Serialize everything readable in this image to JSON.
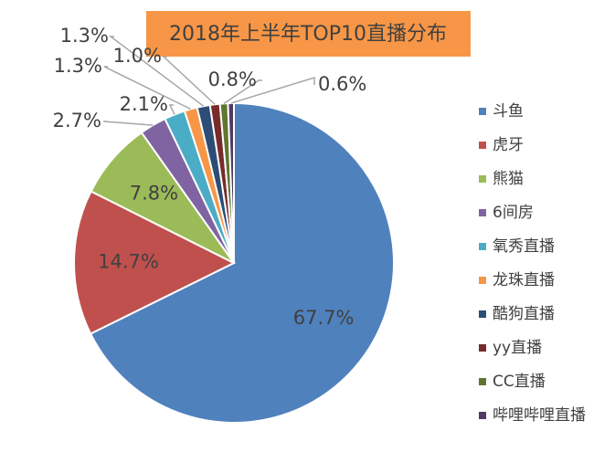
{
  "chart_data": {
    "type": "pie",
    "title": "2018年上半年TOP10直播分布",
    "categories": [
      "斗鱼",
      "虎牙",
      "熊猫",
      "6间房",
      "氧秀直播",
      "龙珠直播",
      "酷狗直播",
      "yy直播",
      "CC直播",
      "哔哩哔哩直播"
    ],
    "values": [
      67.7,
      14.7,
      7.8,
      2.7,
      2.1,
      1.3,
      1.3,
      1.0,
      0.8,
      0.6
    ],
    "value_labels": [
      "67.7%",
      "14.7%",
      "7.8%",
      "2.7%",
      "2.1%",
      "1.3%",
      "1.3%",
      "1.0%",
      "0.8%",
      "0.6%"
    ],
    "colors": [
      "#4f81bd",
      "#c0504d",
      "#9bbb59",
      "#8064a2",
      "#4bacc6",
      "#f79646",
      "#2c4d75",
      "#772c2a",
      "#5f7530",
      "#4d3b62"
    ],
    "legend": "right"
  }
}
